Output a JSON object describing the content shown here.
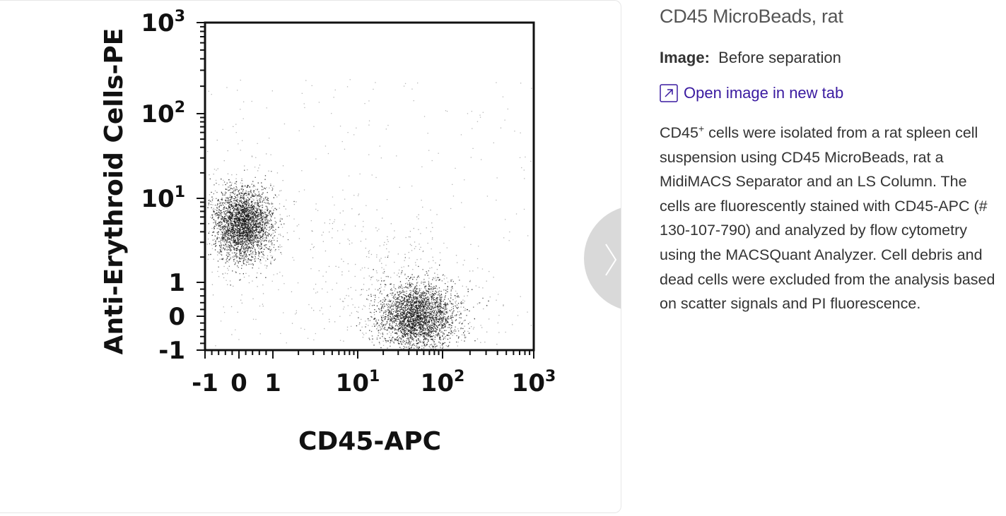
{
  "panel": {
    "title": "CD45 MicroBeads, rat",
    "image_label": "Image:",
    "image_name": "Before separation",
    "open_link": "Open image in new tab",
    "description": {
      "cd": "CD45",
      "sup": "+",
      "text": " cells were isolated from a rat spleen cell suspension using CD45 MicroBeads, rat a MidiMACS Separator and an LS Column. The cells are fluorescently stained with CD45-APC (# 130-107-790) and analyzed by flow cytometry using the MACSQuant Analyzer. Cell debris and dead cells were excluded from the analysis based on scatter signals and PI fluorescence."
    }
  },
  "icons": {
    "next": "chevron-right-icon",
    "open": "external-link-icon"
  },
  "colors": {
    "link": "#3a1aa0",
    "nav_button": "#d9d9d9",
    "dots": "#111111"
  },
  "chart_data": {
    "type": "scatter",
    "xlabel": "CD45-APC",
    "ylabel": "Anti-Erythroid Cells-PE",
    "x_scale": "biexponential",
    "y_scale": "biexponential",
    "xlim": [
      -1,
      1000
    ],
    "ylim": [
      -1,
      1000
    ],
    "x_ticks": [
      {
        "value": -1,
        "base": "-1",
        "exp": ""
      },
      {
        "value": 0,
        "base": "0",
        "exp": ""
      },
      {
        "value": 1,
        "base": "1",
        "exp": ""
      },
      {
        "value": 10,
        "base": "10",
        "exp": "1"
      },
      {
        "value": 100,
        "base": "10",
        "exp": "2"
      },
      {
        "value": 1000,
        "base": "10",
        "exp": "3"
      }
    ],
    "y_ticks": [
      {
        "value": -1,
        "base": "-1",
        "exp": ""
      },
      {
        "value": 0,
        "base": "0",
        "exp": ""
      },
      {
        "value": 1,
        "base": "1",
        "exp": ""
      },
      {
        "value": 10,
        "base": "10",
        "exp": "1"
      },
      {
        "value": 100,
        "base": "10",
        "exp": "2"
      },
      {
        "value": 1000,
        "base": "10",
        "exp": "3"
      }
    ],
    "populations": [
      {
        "x_center": 0.1,
        "y_center": 5,
        "relative_density": "high"
      },
      {
        "x_center": 50,
        "y_center": 0,
        "relative_density": "high"
      }
    ],
    "grid": false,
    "legend": "none"
  }
}
